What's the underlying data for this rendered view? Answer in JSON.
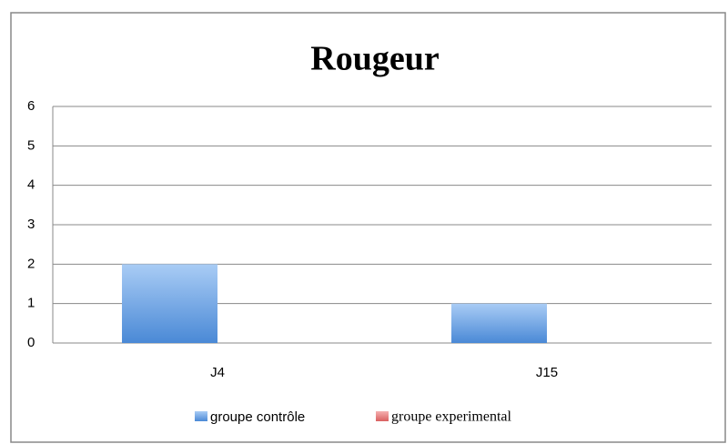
{
  "chart_data": {
    "type": "bar",
    "title": "Rougeur",
    "categories": [
      "J4",
      "J15"
    ],
    "series": [
      {
        "name": "groupe contrôle",
        "color": "#5b9bd5",
        "values": [
          2,
          1
        ]
      },
      {
        "name": "groupe experimental",
        "color": "#e06666",
        "values": [
          0,
          0
        ]
      }
    ],
    "ylim": [
      0,
      6
    ],
    "yticks": [
      0,
      1,
      2,
      3,
      4,
      5,
      6
    ],
    "grid": true,
    "legend": "bottom"
  }
}
